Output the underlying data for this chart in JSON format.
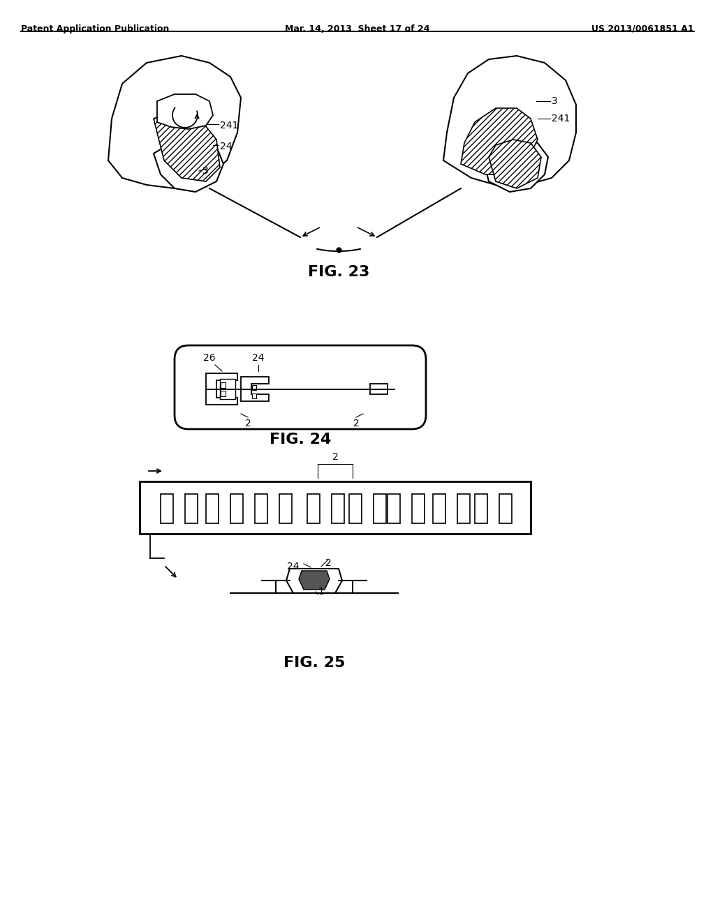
{
  "bg_color": "#ffffff",
  "header_left": "Patent Application Publication",
  "header_mid": "Mar. 14, 2013  Sheet 17 of 24",
  "header_right": "US 2013/0061851 A1",
  "fig23_label": "FIG. 23",
  "fig24_label": "FIG. 24",
  "fig25_label": "FIG. 25",
  "line_color": "#000000",
  "hatch_color": "#000000"
}
